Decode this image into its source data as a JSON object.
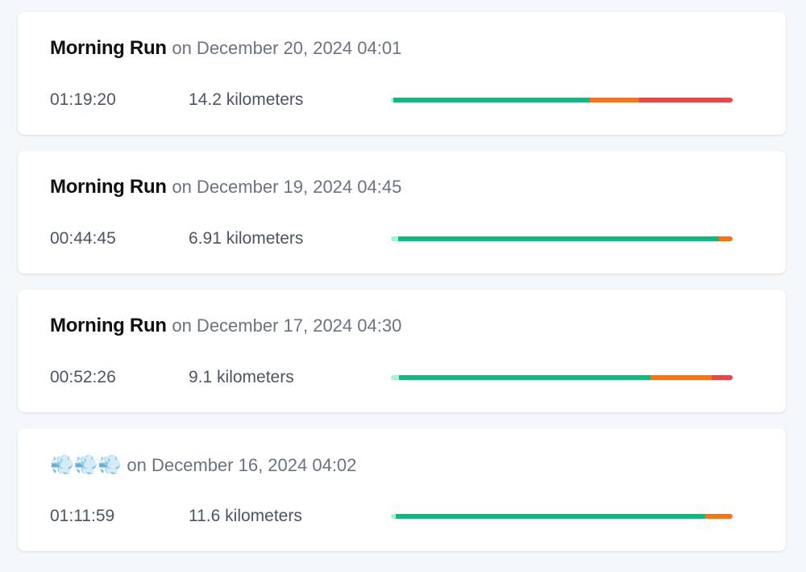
{
  "colors": {
    "zone1": "#a7f3d0",
    "zone2": "#10b981",
    "zone3": "#f97316",
    "zone4": "#ef4444"
  },
  "activities": [
    {
      "name": "Morning Run",
      "date": "on December 20, 2024 04:01",
      "duration": "01:19:20",
      "distance": "14.2 kilometers",
      "zones_percent": [
        0.7,
        57.5,
        14.4,
        27.4
      ]
    },
    {
      "name": "Morning Run",
      "date": "on December 19, 2024 04:45",
      "duration": "00:44:45",
      "distance": "6.91 kilometers",
      "zones_percent": [
        2.1,
        93.9,
        4.0,
        0
      ]
    },
    {
      "name": "Morning Run",
      "date": "on December 17, 2024 04:30",
      "duration": "00:52:26",
      "distance": "9.1 kilometers",
      "zones_percent": [
        2.4,
        73.6,
        17.9,
        6.1
      ]
    },
    {
      "name": "💨💨💨",
      "date": "on December 16, 2024 04:02",
      "duration": "01:11:59",
      "distance": "11.6 kilometers",
      "zones_percent": [
        1.4,
        90.6,
        8.0,
        0
      ]
    }
  ]
}
